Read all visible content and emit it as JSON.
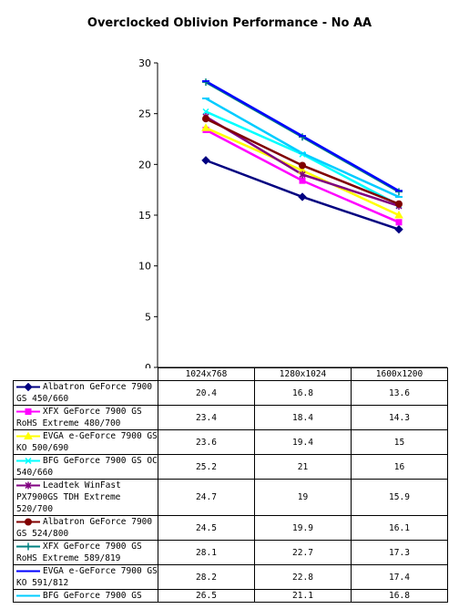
{
  "chart_data": {
    "type": "line",
    "title": "Overclocked Oblivion Performance - No AA",
    "categories": [
      "1024x768",
      "1280x1024",
      "1600x1200"
    ],
    "ylim": [
      0,
      30
    ],
    "yticks": [
      0,
      5,
      10,
      15,
      20,
      25,
      30
    ],
    "grid": false,
    "legend_placement": "data table",
    "series": [
      {
        "name": "Albatron GeForce 7900 GS 450/660",
        "values": [
          20.4,
          16.8,
          13.6
        ],
        "color": "#000080",
        "marker": "diamond"
      },
      {
        "name": "XFX GeForce 7900 GS RoHS Extreme 480/700",
        "values": [
          23.4,
          18.4,
          14.3
        ],
        "color": "#ff00ff",
        "marker": "square"
      },
      {
        "name": "EVGA e-GeForce 7900 GS KO 500/690",
        "values": [
          23.6,
          19.4,
          15
        ],
        "color": "#ffff00",
        "marker": "triangle"
      },
      {
        "name": "BFG GeForce 7900 GS OC 540/660",
        "values": [
          25.2,
          21,
          16
        ],
        "color": "#00ffff",
        "marker": "x"
      },
      {
        "name": "Leadtek WinFast PX7900GS TDH Extreme 520/700",
        "values": [
          24.7,
          19,
          15.9
        ],
        "color": "#800080",
        "marker": "star"
      },
      {
        "name": "Albatron GeForce 7900 GS 524/800",
        "values": [
          24.5,
          19.9,
          16.1
        ],
        "color": "#800000",
        "marker": "circle"
      },
      {
        "name": "XFX GeForce 7900 GS RoHS Extreme 589/819",
        "values": [
          28.1,
          22.7,
          17.3
        ],
        "color": "#008080",
        "marker": "plus"
      },
      {
        "name": "EVGA e-GeForce 7900 GS KO 591/812",
        "values": [
          28.2,
          22.8,
          17.4
        ],
        "color": "#0000ff",
        "marker": "dash"
      },
      {
        "name": "BFG GeForce 7900 GS",
        "values": [
          26.5,
          21.1,
          16.8
        ],
        "color": "#00ccff",
        "marker": "dash"
      }
    ]
  }
}
